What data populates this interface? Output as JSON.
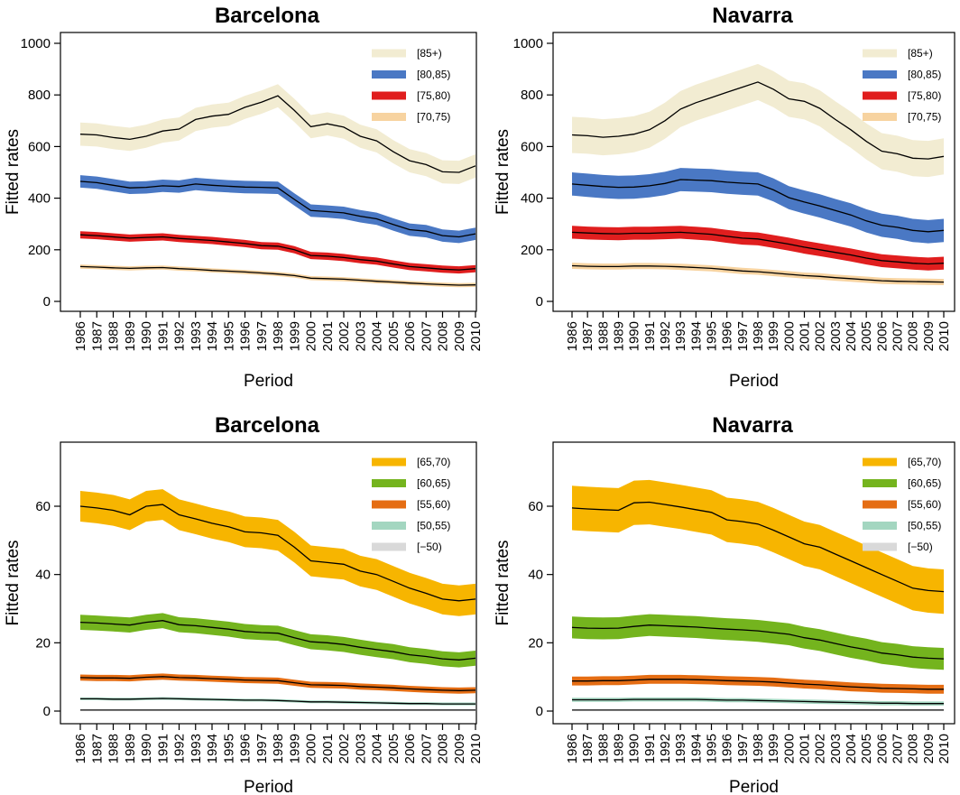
{
  "figure": {
    "x_label": "Period",
    "y_label": "Fitted rates"
  },
  "chart_data": [
    {
      "type": "line",
      "title": "Barcelona",
      "xlabel": "Period",
      "ylabel": "Fitted rates",
      "x": [
        1986,
        1987,
        1988,
        1989,
        1990,
        1991,
        1992,
        1993,
        1994,
        1995,
        1996,
        1997,
        1998,
        1999,
        2000,
        2001,
        2002,
        2003,
        2004,
        2005,
        2006,
        2007,
        2008,
        2009,
        2010
      ],
      "ylim": [
        0,
        1000
      ],
      "yticks": [
        0,
        200,
        400,
        600,
        800,
        1000
      ],
      "legend_position": "top-right",
      "series": [
        {
          "name": "[85+)",
          "color": "#f2ecd2",
          "band_half_width": 45,
          "values": [
            648,
            645,
            635,
            628,
            640,
            660,
            668,
            705,
            718,
            725,
            752,
            772,
            797,
            740,
            677,
            688,
            675,
            640,
            622,
            580,
            545,
            530,
            502,
            500,
            525
          ]
        },
        {
          "name": "[80,85)",
          "color": "#4a78c4",
          "band_half_width": 24,
          "values": [
            465,
            460,
            450,
            440,
            442,
            448,
            445,
            455,
            450,
            446,
            443,
            442,
            440,
            395,
            352,
            348,
            343,
            330,
            320,
            298,
            278,
            272,
            255,
            250,
            262
          ]
        },
        {
          "name": "[75,80)",
          "color": "#e01e1e",
          "band_half_width": 14,
          "values": [
            258,
            255,
            250,
            245,
            248,
            250,
            244,
            240,
            236,
            230,
            224,
            216,
            214,
            200,
            178,
            175,
            170,
            162,
            156,
            145,
            135,
            130,
            125,
            122,
            127
          ]
        },
        {
          "name": "[70,75)",
          "color": "#f7d3a0",
          "band_half_width": 8,
          "values": [
            135,
            133,
            130,
            128,
            130,
            131,
            127,
            124,
            120,
            117,
            114,
            110,
            106,
            100,
            90,
            88,
            86,
            82,
            78,
            75,
            71,
            68,
            65,
            63,
            64
          ]
        }
      ]
    },
    {
      "type": "line",
      "title": "Navarra",
      "xlabel": "Period",
      "ylabel": "Fitted rates",
      "x": [
        1986,
        1987,
        1988,
        1989,
        1990,
        1991,
        1992,
        1993,
        1994,
        1995,
        1996,
        1997,
        1998,
        1999,
        2000,
        2001,
        2002,
        2003,
        2004,
        2005,
        2006,
        2007,
        2008,
        2009,
        2010
      ],
      "ylim": [
        0,
        1000
      ],
      "yticks": [
        0,
        200,
        400,
        600,
        800,
        1000
      ],
      "legend_position": "top-right",
      "series": [
        {
          "name": "[85+)",
          "color": "#f2ecd2",
          "band_half_width": 70,
          "values": [
            645,
            642,
            636,
            640,
            648,
            665,
            700,
            745,
            770,
            790,
            810,
            830,
            850,
            822,
            785,
            775,
            748,
            705,
            665,
            620,
            582,
            572,
            555,
            552,
            562
          ]
        },
        {
          "name": "[80,85)",
          "color": "#4a78c4",
          "band_half_width": 45,
          "values": [
            455,
            450,
            445,
            442,
            443,
            448,
            457,
            472,
            470,
            468,
            462,
            458,
            455,
            432,
            402,
            385,
            370,
            352,
            335,
            312,
            295,
            287,
            275,
            270,
            275
          ]
        },
        {
          "name": "[75,80)",
          "color": "#e01e1e",
          "band_half_width": 25,
          "values": [
            268,
            265,
            263,
            262,
            264,
            264,
            266,
            268,
            264,
            260,
            252,
            245,
            242,
            232,
            222,
            210,
            200,
            190,
            180,
            168,
            158,
            153,
            148,
            145,
            148
          ]
        },
        {
          "name": "[70,75)",
          "color": "#f7d3a0",
          "band_half_width": 12,
          "values": [
            138,
            136,
            135,
            135,
            137,
            137,
            136,
            134,
            131,
            128,
            123,
            118,
            115,
            110,
            105,
            100,
            97,
            92,
            88,
            84,
            80,
            78,
            77,
            76,
            75
          ]
        }
      ]
    },
    {
      "type": "line",
      "title": "Barcelona",
      "xlabel": "Period",
      "ylabel": "Fitted rates",
      "x": [
        1986,
        1987,
        1988,
        1989,
        1990,
        1991,
        1992,
        1993,
        1994,
        1995,
        1996,
        1997,
        1998,
        1999,
        2000,
        2001,
        2002,
        2003,
        2004,
        2005,
        2006,
        2007,
        2008,
        2009,
        2010
      ],
      "ylim": [
        0,
        75
      ],
      "yticks": [
        0,
        20,
        40,
        60
      ],
      "legend_position": "top-right",
      "series": [
        {
          "name": "[65,70)",
          "color": "#f7b500",
          "band_half_width": 4.5,
          "values": [
            60,
            59.5,
            58.8,
            57.5,
            60,
            60.5,
            57.5,
            56.3,
            55,
            54,
            52.5,
            52.2,
            51.5,
            48,
            44,
            43.5,
            43,
            41,
            40,
            38,
            36,
            34.5,
            32.8,
            32.3,
            32.8
          ]
        },
        {
          "name": "[60,65)",
          "color": "#74b41e",
          "band_half_width": 2.2,
          "values": [
            26,
            25.8,
            25.5,
            25.2,
            26,
            26.5,
            25.3,
            25,
            24.5,
            24,
            23.3,
            23,
            22.8,
            21.5,
            20.3,
            20,
            19.5,
            18.7,
            18,
            17.4,
            16.5,
            16,
            15.3,
            15,
            15.5
          ]
        },
        {
          "name": "[55,60)",
          "color": "#e56d13",
          "band_half_width": 0.9,
          "values": [
            9.8,
            9.7,
            9.7,
            9.6,
            9.9,
            10.1,
            9.8,
            9.7,
            9.5,
            9.3,
            9.1,
            9,
            8.9,
            8.3,
            7.7,
            7.6,
            7.5,
            7.2,
            7,
            6.8,
            6.5,
            6.3,
            6.1,
            6,
            6.1
          ]
        },
        {
          "name": "[50,55)",
          "color": "#a3d6c0",
          "band_half_width": 0.4,
          "values": [
            3.6,
            3.6,
            3.5,
            3.5,
            3.6,
            3.7,
            3.6,
            3.5,
            3.4,
            3.3,
            3.2,
            3.2,
            3.1,
            2.9,
            2.7,
            2.7,
            2.6,
            2.5,
            2.4,
            2.3,
            2.2,
            2.2,
            2.1,
            2.1,
            2.1
          ]
        },
        {
          "name": "[−50)",
          "color": "#d9d9d9",
          "band_half_width": 0.1,
          "values": [
            0.3,
            0.3,
            0.3,
            0.3,
            0.3,
            0.3,
            0.3,
            0.3,
            0.3,
            0.3,
            0.3,
            0.3,
            0.3,
            0.3,
            0.3,
            0.3,
            0.3,
            0.3,
            0.3,
            0.3,
            0.3,
            0.3,
            0.3,
            0.3,
            0.3
          ]
        }
      ]
    },
    {
      "type": "line",
      "title": "Navarra",
      "xlabel": "Period",
      "ylabel": "Fitted rates",
      "x": [
        1986,
        1987,
        1988,
        1989,
        1990,
        1991,
        1992,
        1993,
        1994,
        1995,
        1996,
        1997,
        1998,
        1999,
        2000,
        2001,
        2002,
        2003,
        2004,
        2005,
        2006,
        2007,
        2008,
        2009,
        2010
      ],
      "ylim": [
        0,
        75
      ],
      "yticks": [
        0,
        20,
        40,
        60
      ],
      "legend_position": "top-right",
      "series": [
        {
          "name": "[65,70)",
          "color": "#f7b500",
          "band_half_width": 6.5,
          "values": [
            59.5,
            59.2,
            59,
            58.8,
            61,
            61.2,
            60.5,
            59.8,
            59,
            58.2,
            56,
            55.5,
            54.8,
            53,
            51,
            49,
            48,
            46,
            44,
            42,
            40,
            38,
            36,
            35.3,
            35
          ]
        },
        {
          "name": "[60,65)",
          "color": "#74b41e",
          "band_half_width": 3.2,
          "values": [
            24.5,
            24.3,
            24.2,
            24.3,
            24.8,
            25.2,
            25,
            24.8,
            24.6,
            24.3,
            24,
            23.8,
            23.5,
            23,
            22.5,
            21.5,
            20.8,
            19.8,
            18.8,
            18,
            17,
            16.5,
            15.8,
            15.5,
            15.3
          ]
        },
        {
          "name": "[55,60)",
          "color": "#e56d13",
          "band_half_width": 1.3,
          "values": [
            8.8,
            8.8,
            8.9,
            8.9,
            9.1,
            9.3,
            9.3,
            9.3,
            9.2,
            9.1,
            8.9,
            8.8,
            8.7,
            8.5,
            8.2,
            7.9,
            7.7,
            7.4,
            7.1,
            6.9,
            6.7,
            6.6,
            6.5,
            6.4,
            6.4
          ]
        },
        {
          "name": "[50,55)",
          "color": "#a3d6c0",
          "band_half_width": 0.6,
          "values": [
            3.3,
            3.3,
            3.3,
            3.3,
            3.4,
            3.4,
            3.4,
            3.4,
            3.4,
            3.3,
            3.2,
            3.2,
            3.1,
            3,
            2.9,
            2.8,
            2.7,
            2.6,
            2.5,
            2.4,
            2.3,
            2.3,
            2.2,
            2.2,
            2.2
          ]
        },
        {
          "name": "[−50)",
          "color": "#d9d9d9",
          "band_half_width": 0.1,
          "values": [
            0.3,
            0.3,
            0.3,
            0.3,
            0.3,
            0.3,
            0.3,
            0.3,
            0.3,
            0.3,
            0.3,
            0.3,
            0.3,
            0.3,
            0.3,
            0.3,
            0.3,
            0.3,
            0.3,
            0.3,
            0.3,
            0.3,
            0.3,
            0.3,
            0.3
          ]
        }
      ]
    }
  ]
}
